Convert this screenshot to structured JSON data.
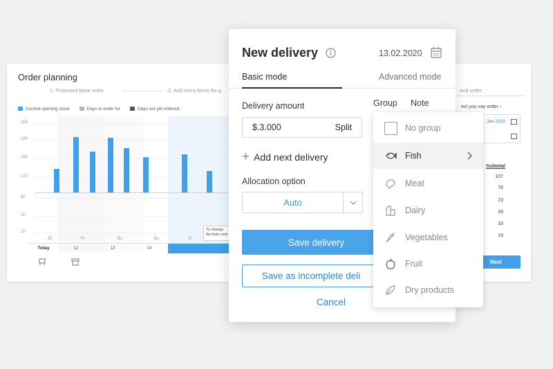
{
  "background": {
    "title": "Order planning",
    "steps": [
      "1. Proposed base order",
      "2. Add extra items for g",
      "and order"
    ],
    "legend": [
      {
        "label": "Current opening stock",
        "color": "#41a0e8"
      },
      {
        "label": "Days to order for",
        "color": "#b5b5b5"
      },
      {
        "label": "Days not yet ordered",
        "color": "#555555"
      }
    ],
    "y_ticks": [
      "200",
      "180",
      "160",
      "120",
      "80",
      "40",
      "20"
    ],
    "x_days": [
      "15",
      "Fr",
      "Su",
      "Su",
      "17"
    ],
    "x_dates": [
      "Today",
      "12",
      "13",
      "14"
    ],
    "tooltip": "To change the bule verti",
    "right_text": "ect you vay order",
    "date_value": "Jan 2020",
    "subtotal_header": "Subtotal",
    "subtotals": [
      "107",
      "78",
      "23",
      "39",
      "33",
      "19"
    ],
    "next_label": "Next"
  },
  "modal": {
    "title": "New delivery",
    "date": "13.02.2020",
    "tabs": {
      "basic": "Basic mode",
      "advanced": "Advanced mode"
    },
    "delivery_amount_label": "Delivery amount",
    "amount_value": "$.3.000",
    "split_label": "Split",
    "group_label": "Group",
    "note_label": "Note",
    "add_next_label": "Add next delivery",
    "allocation_label": "Allocation option",
    "allocation_value": "Auto",
    "save_label": "Save delivery",
    "save_incomplete_label": "Save as incomplete deli",
    "cancel_label": "Cancel"
  },
  "dropdown": {
    "items": [
      {
        "label": "No group",
        "icon": "checkbox"
      },
      {
        "label": "Fish",
        "icon": "fish-icon"
      },
      {
        "label": "Meat",
        "icon": "meat-icon"
      },
      {
        "label": "Dairy",
        "icon": "dairy-icon"
      },
      {
        "label": "Vegetables",
        "icon": "carrot-icon"
      },
      {
        "label": "Fruit",
        "icon": "apple-icon"
      },
      {
        "label": "Dry products",
        "icon": "leaf-icon"
      }
    ]
  },
  "colors": {
    "accent": "#41a0e8",
    "button": "#4aa4ea",
    "link": "#2e88d0"
  }
}
